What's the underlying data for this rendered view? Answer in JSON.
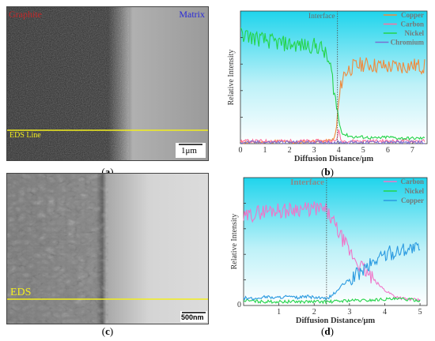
{
  "panels": {
    "a": {
      "label": "a",
      "left_text": "Graphite",
      "right_text": "Matrix",
      "line_text": "EDS Line",
      "scale_text": "1μm",
      "colors": {
        "left_text": "#c0282a",
        "right_text": "#2a2ad8",
        "line": "#f2ee1e",
        "line_text": "#f2ee1e"
      }
    },
    "b": {
      "label": "b",
      "annotation": "Interface",
      "colors": {
        "background_top": "#1fd4ec",
        "background_bottom": "#ffffff"
      }
    },
    "c": {
      "label": "c",
      "line_text": "EDS",
      "scale_text": "500nm",
      "colors": {
        "line": "#f2ee1e",
        "line_text": "#f2ee1e"
      }
    },
    "d": {
      "label": "d",
      "annotation": "Interface",
      "colors": {
        "background_top": "#1fd4ec",
        "background_bottom": "#ffffff"
      }
    }
  },
  "chart_data": [
    {
      "id": "b",
      "type": "line",
      "title": "",
      "xlabel": "Diffusion Distance/μm",
      "ylabel": "Relative Intensity",
      "xlim": [
        0,
        7.6
      ],
      "ylim": [
        0,
        1
      ],
      "xticks": [
        "0",
        "1",
        "2",
        "3",
        "4",
        "5",
        "6",
        "7"
      ],
      "interface_x": 3.95,
      "legend_position": "top-right",
      "series": [
        {
          "name": "Copper",
          "color": "#f08a3c",
          "x": [
            0,
            0.5,
            1,
            1.5,
            2,
            2.5,
            3,
            3.5,
            3.8,
            3.9,
            4.0,
            4.1,
            4.2,
            4.4,
            4.6,
            5,
            5.5,
            6,
            6.5,
            7,
            7.5
          ],
          "y": [
            0.01,
            0.01,
            0.01,
            0.02,
            0.01,
            0.01,
            0.02,
            0.02,
            0.03,
            0.1,
            0.3,
            0.45,
            0.52,
            0.56,
            0.58,
            0.6,
            0.59,
            0.58,
            0.58,
            0.59,
            0.58
          ]
        },
        {
          "name": "Carbon",
          "color": "#ff6f9f",
          "x": [
            0,
            1,
            2,
            3,
            3.9,
            4.0,
            4.1,
            5,
            6,
            7,
            7.5
          ],
          "y": [
            0.02,
            0.02,
            0.02,
            0.02,
            0.02,
            0.1,
            0.02,
            0.02,
            0.02,
            0.02,
            0.02
          ]
        },
        {
          "name": "Nickel",
          "color": "#24d44a",
          "x": [
            0,
            0.5,
            1,
            1.5,
            2,
            2.5,
            3,
            3.3,
            3.5,
            3.7,
            3.8,
            3.9,
            4.0,
            4.1,
            4.2,
            4.4,
            4.6,
            5,
            5.5,
            6,
            6.5,
            7,
            7.5
          ],
          "y": [
            0.83,
            0.8,
            0.78,
            0.76,
            0.75,
            0.74,
            0.74,
            0.72,
            0.66,
            0.55,
            0.42,
            0.3,
            0.18,
            0.1,
            0.07,
            0.06,
            0.05,
            0.05,
            0.04,
            0.05,
            0.04,
            0.04,
            0.04
          ]
        },
        {
          "name": "Chromium",
          "color": "#7a6fd0",
          "x": [
            0,
            1,
            2,
            3,
            4,
            5,
            6,
            7,
            7.5
          ],
          "y": [
            0.01,
            0.01,
            0.01,
            0.01,
            0.01,
            0.01,
            0.01,
            0.01,
            0.01
          ]
        }
      ]
    },
    {
      "id": "d",
      "type": "line",
      "title": "",
      "xlabel": "Diffusion Distance/μm",
      "ylabel": "Relative Intensity",
      "xlim": [
        0,
        5.2
      ],
      "ylim": [
        0,
        1
      ],
      "xticks": [
        "1",
        "2",
        "3",
        "4",
        "5"
      ],
      "interface_x": 2.35,
      "legend_position": "top-right",
      "series": [
        {
          "name": "Carbon",
          "color": "#f075c8",
          "x": [
            0,
            0.3,
            0.6,
            0.9,
            1.2,
            1.5,
            1.8,
            2.1,
            2.35,
            2.6,
            2.8,
            3.0,
            3.2,
            3.5,
            3.8,
            4.0,
            4.3,
            4.6,
            5.0
          ],
          "y": [
            0.68,
            0.72,
            0.74,
            0.75,
            0.74,
            0.76,
            0.75,
            0.76,
            0.74,
            0.62,
            0.52,
            0.42,
            0.35,
            0.25,
            0.17,
            0.12,
            0.07,
            0.05,
            0.04
          ]
        },
        {
          "name": "Nickel",
          "color": "#24d44a",
          "x": [
            0,
            0.5,
            1,
            1.5,
            2,
            2.5,
            3,
            3.5,
            4,
            4.5,
            5.0
          ],
          "y": [
            0.04,
            0.03,
            0.03,
            0.03,
            0.03,
            0.03,
            0.04,
            0.04,
            0.05,
            0.05,
            0.04
          ]
        },
        {
          "name": "Copper",
          "color": "#2a9ae0",
          "x": [
            0,
            0.3,
            0.6,
            0.9,
            1.2,
            1.5,
            1.8,
            2.1,
            2.35,
            2.6,
            2.8,
            3.0,
            3.2,
            3.5,
            3.8,
            4.0,
            4.3,
            4.6,
            5.0
          ],
          "y": [
            0.06,
            0.05,
            0.07,
            0.06,
            0.07,
            0.06,
            0.07,
            0.06,
            0.05,
            0.1,
            0.16,
            0.2,
            0.24,
            0.3,
            0.37,
            0.4,
            0.42,
            0.45,
            0.44
          ]
        }
      ]
    }
  ]
}
